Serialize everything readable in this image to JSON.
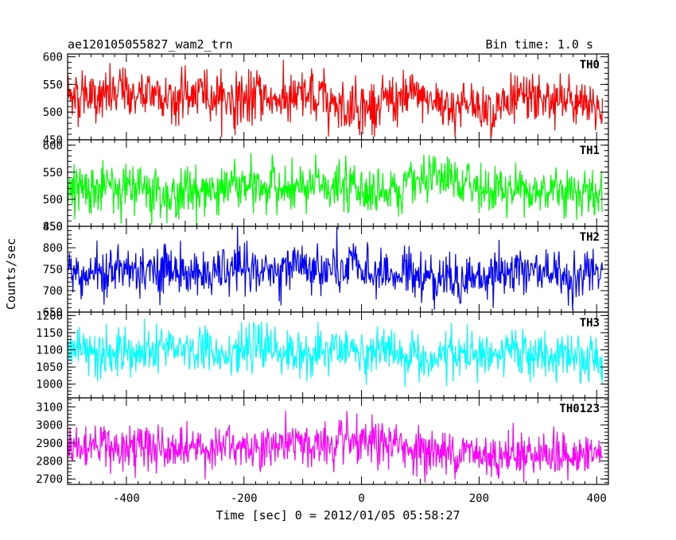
{
  "header": {
    "left_title": "ae120105055827_wam2_trn",
    "right_title": "Bin time: 1.0 s"
  },
  "chart_data": {
    "type": "line",
    "title": "ae120105055827_wam2_trn",
    "bin_time": "Bin time: 1.0 s",
    "xlabel": "Time [sec] 0 = 2012/01/05 05:58:27",
    "ylabel": "Counts/sec",
    "xlim": [
      -500,
      420
    ],
    "x_ticks": [
      -400,
      -200,
      0,
      200,
      400
    ],
    "x_range_data": [
      -500,
      410
    ],
    "grid": false,
    "legend": "none",
    "panels": [
      {
        "name": "TH0",
        "color": "#ff0000",
        "ylim": [
          450,
          605
        ],
        "y_ticks": [
          450,
          500,
          550,
          600
        ],
        "values": {
          "mean_start": 535,
          "mean_end": 508,
          "noise_sd": 23,
          "min": 455,
          "max": 605
        }
      },
      {
        "name": "TH1",
        "color": "#00ff00",
        "ylim": [
          450,
          610
        ],
        "y_ticks": [
          450,
          500,
          550,
          600
        ],
        "values": {
          "mean_start": 520,
          "mean_end": 520,
          "noise_sd": 22,
          "min": 452,
          "max": 610
        }
      },
      {
        "name": "TH2",
        "color": "#0000ff",
        "ylim": [
          650,
          850
        ],
        "y_ticks": [
          650,
          700,
          750,
          800,
          850
        ],
        "values": {
          "mean_start": 745,
          "mean_end": 735,
          "noise_sd": 28,
          "min": 655,
          "max": 850
        }
      },
      {
        "name": "TH3",
        "color": "#00ffff",
        "ylim": [
          960,
          1210
        ],
        "y_ticks": [
          1000,
          1050,
          1100,
          1150,
          1200
        ],
        "values": {
          "mean_start": 1105,
          "mean_end": 1075,
          "noise_sd": 33,
          "min": 975,
          "max": 1210
        }
      },
      {
        "name": "TH0123",
        "color": "#ff00ff",
        "ylim": [
          2670,
          3150
        ],
        "y_ticks": [
          2700,
          2800,
          2900,
          3000,
          3100
        ],
        "values": {
          "mean_start": 2900,
          "mean_end": 2840,
          "noise_sd": 60,
          "min": 2680,
          "max": 3150
        }
      }
    ]
  }
}
